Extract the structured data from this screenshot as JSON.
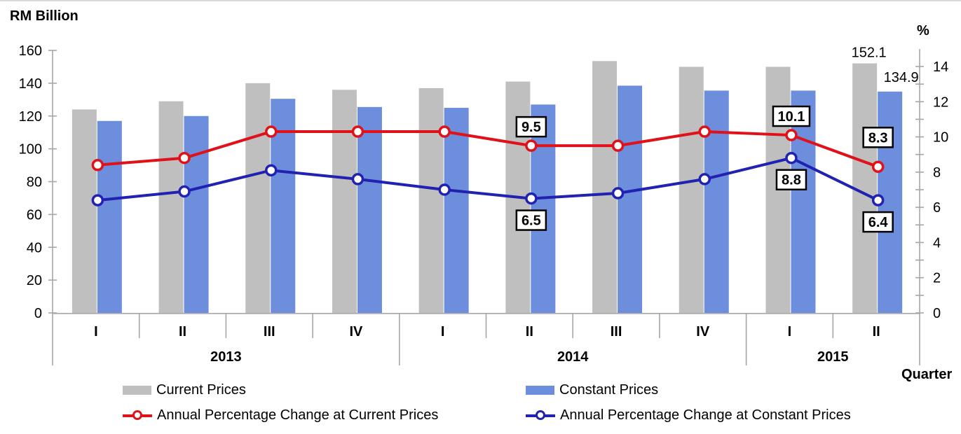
{
  "titles": {
    "left_axis": "RM Billion",
    "right_axis": "%",
    "x_axis": "Quarter"
  },
  "colors": {
    "current_bar": "#BFBFBF",
    "constant_bar": "#6D8EDD",
    "current_line": "#E01119",
    "constant_line": "#2121B2",
    "axis": "#A6A6A6",
    "text": "#000000",
    "label_box_bg": "#FFFFFF",
    "label_box_border": "#000000"
  },
  "legend": [
    {
      "label": "Current Prices",
      "marker": "bar",
      "color": "#BFBFBF"
    },
    {
      "label": "Constant Prices",
      "marker": "bar",
      "color": "#6D8EDD"
    },
    {
      "label": "Annual Percentage Change at Current Prices",
      "marker": "line",
      "color": "#E01119"
    },
    {
      "label": "Annual Percentage Change at Constant Prices",
      "marker": "line",
      "color": "#2121B2"
    }
  ],
  "chart_data": {
    "type": "bar",
    "subtype": "combo-bar-line-dual-axis",
    "categories": [
      "I",
      "II",
      "III",
      "IV",
      "I",
      "II",
      "III",
      "IV",
      "I",
      "II"
    ],
    "year_groups": [
      {
        "label": "2013",
        "span": 4
      },
      {
        "label": "2014",
        "span": 4
      },
      {
        "label": "2015",
        "span": 2
      }
    ],
    "left_axis": {
      "label": "RM Billion",
      "min": 0,
      "max": 160,
      "step": 20
    },
    "right_axis": {
      "label": "%",
      "min": 0,
      "max": 14,
      "step": 2,
      "minor_step": 1
    },
    "grid": false,
    "legend_position": "bottom",
    "series": [
      {
        "name": "Current Prices",
        "type": "bar",
        "axis": "left",
        "color": "#BFBFBF",
        "values": [
          124,
          129,
          140,
          136,
          137,
          141,
          153.5,
          150,
          150,
          152.1
        ]
      },
      {
        "name": "Constant Prices",
        "type": "bar",
        "axis": "left",
        "color": "#6D8EDD",
        "values": [
          117,
          120,
          130.5,
          125.5,
          125,
          127,
          138.5,
          135.5,
          135.5,
          134.9
        ]
      },
      {
        "name": "Annual Percentage Change at Current Prices",
        "type": "line",
        "axis": "right",
        "color": "#E01119",
        "values": [
          8.4,
          8.8,
          10.3,
          10.3,
          10.3,
          9.5,
          9.5,
          10.3,
          10.1,
          8.3
        ]
      },
      {
        "name": "Annual Percentage Change at Constant Prices",
        "type": "line",
        "axis": "right",
        "color": "#2121B2",
        "values": [
          6.4,
          6.9,
          8.1,
          7.6,
          7.0,
          6.5,
          6.8,
          7.6,
          8.8,
          6.4
        ]
      }
    ],
    "annotations": [
      {
        "text": "9.5",
        "series": 2,
        "index": 5,
        "boxed": true,
        "placement": "above"
      },
      {
        "text": "6.5",
        "series": 3,
        "index": 5,
        "boxed": true,
        "placement": "below"
      },
      {
        "text": "10.1",
        "series": 2,
        "index": 8,
        "boxed": true,
        "placement": "above"
      },
      {
        "text": "8.8",
        "series": 3,
        "index": 8,
        "boxed": true,
        "placement": "below"
      },
      {
        "text": "8.3",
        "series": 2,
        "index": 9,
        "boxed": true,
        "placement": "above-far"
      },
      {
        "text": "6.4",
        "series": 3,
        "index": 9,
        "boxed": true,
        "placement": "below"
      },
      {
        "text": "152.1",
        "series": 0,
        "index": 9,
        "boxed": false,
        "placement": "above-bar"
      },
      {
        "text": "134.9",
        "series": 1,
        "index": 9,
        "boxed": false,
        "placement": "above-bar-right"
      }
    ]
  }
}
